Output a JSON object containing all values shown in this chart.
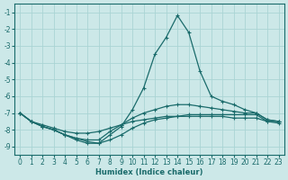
{
  "xlabel": "Humidex (Indice chaleur)",
  "background_color": "#cce8e8",
  "grid_color": "#aad4d4",
  "line_color": "#1a6b6b",
  "xlim": [
    -0.5,
    23.5
  ],
  "ylim": [
    -9.5,
    -0.5
  ],
  "yticks": [
    -1,
    -2,
    -3,
    -4,
    -5,
    -6,
    -7,
    -8,
    -9
  ],
  "xticks": [
    0,
    1,
    2,
    3,
    4,
    5,
    6,
    7,
    8,
    9,
    10,
    11,
    12,
    13,
    14,
    15,
    16,
    17,
    18,
    19,
    20,
    21,
    22,
    23
  ],
  "curves": [
    [
      -7.0,
      -7.5,
      -7.8,
      -8.0,
      -8.3,
      -8.6,
      -8.8,
      -8.8,
      -8.3,
      -7.8,
      -6.8,
      -5.5,
      -3.5,
      -2.5,
      -1.2,
      -2.2,
      -4.5,
      -6.0,
      -6.3,
      -6.5,
      -6.8,
      -7.0,
      -7.4,
      -7.5
    ],
    [
      -7.0,
      -7.5,
      -7.8,
      -8.0,
      -8.3,
      -8.5,
      -8.6,
      -8.6,
      -8.1,
      -7.7,
      -7.3,
      -7.0,
      -6.8,
      -6.6,
      -6.5,
      -6.5,
      -6.6,
      -6.7,
      -6.8,
      -6.9,
      -7.0,
      -7.0,
      -7.4,
      -7.5
    ],
    [
      -7.0,
      -7.5,
      -7.7,
      -7.9,
      -8.1,
      -8.2,
      -8.2,
      -8.1,
      -7.9,
      -7.7,
      -7.5,
      -7.4,
      -7.3,
      -7.2,
      -7.2,
      -7.1,
      -7.1,
      -7.1,
      -7.1,
      -7.1,
      -7.1,
      -7.1,
      -7.5,
      -7.5
    ],
    [
      -7.0,
      -7.5,
      -7.8,
      -8.0,
      -8.3,
      -8.5,
      -8.7,
      -8.8,
      -8.6,
      -8.3,
      -7.9,
      -7.6,
      -7.4,
      -7.3,
      -7.2,
      -7.2,
      -7.2,
      -7.2,
      -7.2,
      -7.3,
      -7.3,
      -7.3,
      -7.5,
      -7.6
    ]
  ]
}
